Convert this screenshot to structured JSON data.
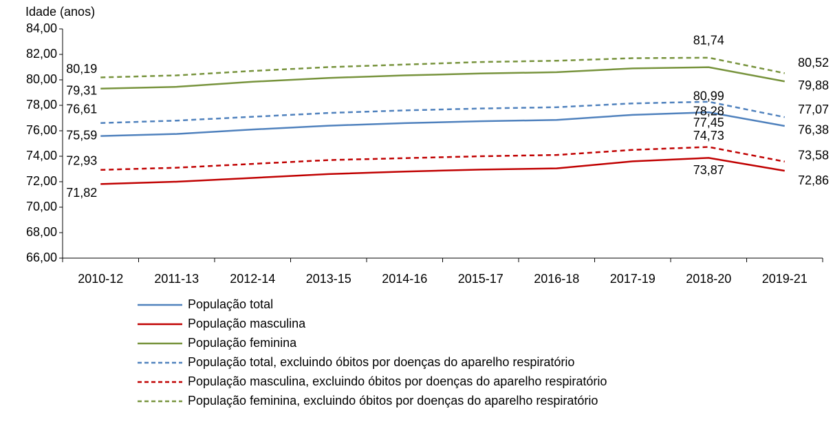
{
  "chart_data": {
    "type": "line",
    "y_label": "Idade (anos)",
    "categories": [
      "2010-12",
      "2011-13",
      "2012-14",
      "2013-15",
      "2014-16",
      "2015-17",
      "2016-18",
      "2017-19",
      "2018-20",
      "2019-21"
    ],
    "ylim": [
      66,
      84
    ],
    "yticks": [
      {
        "value": 66,
        "label": "66,00"
      },
      {
        "value": 68,
        "label": "68,00"
      },
      {
        "value": 70,
        "label": "70,00"
      },
      {
        "value": 72,
        "label": "72,00"
      },
      {
        "value": 74,
        "label": "74,00"
      },
      {
        "value": 76,
        "label": "76,00"
      },
      {
        "value": 78,
        "label": "78,00"
      },
      {
        "value": 80,
        "label": "80,00"
      },
      {
        "value": 82,
        "label": "82,00"
      },
      {
        "value": 84,
        "label": "84,00"
      }
    ],
    "series": [
      {
        "name": "População total",
        "color": "#4f81bd",
        "line_style": "solid",
        "values": [
          75.59,
          75.75,
          76.1,
          76.4,
          76.6,
          76.75,
          76.85,
          77.25,
          77.45,
          76.38
        ],
        "value_labels": [
          "75,59",
          null,
          null,
          null,
          null,
          null,
          null,
          null,
          "77,45",
          "76,38"
        ]
      },
      {
        "name": "População masculina",
        "color": "#c00000",
        "line_style": "solid",
        "values": [
          71.82,
          72.0,
          72.3,
          72.6,
          72.8,
          72.95,
          73.05,
          73.6,
          73.87,
          72.86
        ],
        "value_labels": [
          "71,82",
          null,
          null,
          null,
          null,
          null,
          null,
          null,
          "73,87",
          "72,86"
        ]
      },
      {
        "name": "População feminina",
        "color": "#77933c",
        "line_style": "solid",
        "values": [
          79.31,
          79.45,
          79.85,
          80.15,
          80.35,
          80.5,
          80.6,
          80.9,
          80.99,
          79.88
        ],
        "value_labels": [
          "79,31",
          null,
          null,
          null,
          null,
          null,
          null,
          null,
          "80,99",
          "79,88"
        ]
      },
      {
        "name": "População total, excluindo óbitos por doenças do aparelho respiratório",
        "color": "#4f81bd",
        "line_style": "dashed",
        "values": [
          76.61,
          76.8,
          77.1,
          77.4,
          77.6,
          77.75,
          77.85,
          78.15,
          78.28,
          77.07
        ],
        "value_labels": [
          "76,61",
          null,
          null,
          null,
          null,
          null,
          null,
          null,
          "78,28",
          "77,07"
        ]
      },
      {
        "name": "População masculina, excluindo óbitos por doenças do aparelho respiratório",
        "color": "#c00000",
        "line_style": "dashed",
        "values": [
          72.93,
          73.1,
          73.4,
          73.7,
          73.85,
          74.0,
          74.1,
          74.5,
          74.73,
          73.58
        ],
        "value_labels": [
          "72,93",
          null,
          null,
          null,
          null,
          null,
          null,
          null,
          "74,73",
          "73,58"
        ]
      },
      {
        "name": "População feminina, excluindo óbitos por doenças do aparelho respiratório",
        "color": "#77933c",
        "line_style": "dashed",
        "values": [
          80.19,
          80.35,
          80.7,
          81.0,
          81.2,
          81.4,
          81.5,
          81.7,
          81.74,
          80.52
        ],
        "value_labels": [
          "80,19",
          null,
          null,
          null,
          null,
          null,
          null,
          null,
          "81,74",
          "80,52"
        ]
      }
    ]
  }
}
